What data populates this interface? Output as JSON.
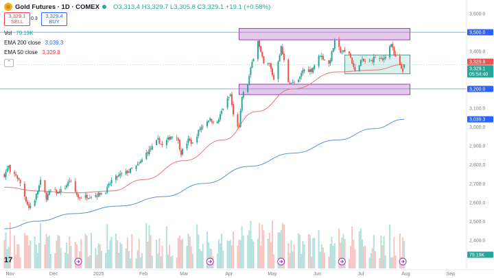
{
  "header": {
    "symbol": "Gold Futures · 1D · COMEX",
    "open": "O3,313.4",
    "high": "H3,329.7",
    "low": "L3,305.8",
    "close": "C3,329.1",
    "change": "+19.1 (+0.58%)"
  },
  "trade": {
    "sell_price": "3,329.1",
    "sell_label": "SELL",
    "spread": "0.3",
    "buy_price": "3,329.4",
    "buy_label": "BUY"
  },
  "indicators": {
    "vol_label": "Vol",
    "vol_value": "79.19K",
    "ema200_label": "EMA 200 close",
    "ema200_value": "3,039.3",
    "ema50_label": "EMA 50 close",
    "ema50_value": "3,329.8"
  },
  "colors": {
    "up": "#26a69a",
    "down": "#ef5350",
    "ema50": "#e57373",
    "ema200": "#5b8fd6",
    "zone_purple": "#e1bee7",
    "zone_purple_edge": "#7b1fa2",
    "zone_teal": "#cdeae5",
    "zone_teal_edge": "#2a7f74",
    "axis_text": "#787b86"
  },
  "badges": {
    "upper_level": "3,500.0",
    "lower_level": "3,200.0",
    "ema50_price": "3,329.8",
    "last_price": "3,329.1",
    "countdown": "05:54:40",
    "ema200_price": "3,039.3",
    "volume": "79.19K"
  },
  "chart_data": {
    "type": "candlestick",
    "title": "Gold Futures · 1D · COMEX",
    "y_ticks": [
      "3,600.0",
      "3,400.0",
      "3,300.0",
      "3,100.0",
      "3,000.0",
      "2,900.0",
      "2,800.0",
      "2,700.0",
      "2,600.0",
      "2,500.0",
      "2,400.0"
    ],
    "x_ticks": [
      "Nov",
      "Dec",
      "2025",
      "Feb",
      "Mar",
      "Apr",
      "May",
      "Jun",
      "Jul",
      "Aug",
      "Sep"
    ],
    "ylim": [
      2250,
      3620
    ],
    "ohlc_last": {
      "open": 3313.4,
      "high": 3329.7,
      "low": 3305.8,
      "close": 3329.1,
      "change": 19.1,
      "change_pct": 0.58
    },
    "close_path": [
      [
        "2024-10-28",
        2745
      ],
      [
        "2024-10-31",
        2790
      ],
      [
        "2024-11-01",
        2750
      ],
      [
        "2024-11-05",
        2745
      ],
      [
        "2024-11-08",
        2700
      ],
      [
        "2024-11-12",
        2610
      ],
      [
        "2024-11-14",
        2570
      ],
      [
        "2024-11-18",
        2615
      ],
      [
        "2024-11-22",
        2710
      ],
      [
        "2024-11-26",
        2625
      ],
      [
        "2024-11-29",
        2665
      ],
      [
        "2024-12-04",
        2650
      ],
      [
        "2024-12-09",
        2680
      ],
      [
        "2024-12-12",
        2715
      ],
      [
        "2024-12-18",
        2625
      ],
      [
        "2024-12-23",
        2630
      ],
      [
        "2024-12-31",
        2640
      ],
      [
        "2025-01-06",
        2660
      ],
      [
        "2025-01-10",
        2715
      ],
      [
        "2025-01-16",
        2745
      ],
      [
        "2025-01-22",
        2765
      ],
      [
        "2025-01-29",
        2800
      ],
      [
        "2025-02-03",
        2860
      ],
      [
        "2025-02-07",
        2890
      ],
      [
        "2025-02-11",
        2930
      ],
      [
        "2025-02-14",
        2900
      ],
      [
        "2025-02-20",
        2950
      ],
      [
        "2025-02-24",
        2950
      ],
      [
        "2025-02-27",
        2860
      ],
      [
        "2025-03-04",
        2930
      ],
      [
        "2025-03-07",
        2910
      ],
      [
        "2025-03-12",
        2990
      ],
      [
        "2025-03-18",
        3040
      ],
      [
        "2025-03-24",
        3020
      ],
      [
        "2025-03-28",
        3100
      ],
      [
        "2025-04-02",
        3170
      ],
      [
        "2025-04-04",
        3060
      ],
      [
        "2025-04-08",
        2990
      ],
      [
        "2025-04-10",
        3160
      ],
      [
        "2025-04-14",
        3230
      ],
      [
        "2025-04-17",
        3340
      ],
      [
        "2025-04-21",
        3460
      ],
      [
        "2025-04-22",
        3420
      ],
      [
        "2025-04-25",
        3330
      ],
      [
        "2025-04-29",
        3330
      ],
      [
        "2025-05-02",
        3250
      ],
      [
        "2025-05-07",
        3420
      ],
      [
        "2025-05-12",
        3240
      ],
      [
        "2025-05-15",
        3230
      ],
      [
        "2025-05-19",
        3240
      ],
      [
        "2025-05-22",
        3300
      ],
      [
        "2025-05-28",
        3300
      ],
      [
        "2025-06-03",
        3380
      ],
      [
        "2025-06-09",
        3330
      ],
      [
        "2025-06-13",
        3450
      ],
      [
        "2025-06-17",
        3400
      ],
      [
        "2025-06-23",
        3390
      ],
      [
        "2025-06-27",
        3290
      ],
      [
        "2025-07-01",
        3350
      ],
      [
        "2025-07-07",
        3340
      ],
      [
        "2025-07-11",
        3370
      ],
      [
        "2025-07-16",
        3350
      ],
      [
        "2025-07-22",
        3440
      ],
      [
        "2025-07-24",
        3380
      ],
      [
        "2025-07-28",
        3320
      ],
      [
        "2025-07-30",
        3300
      ],
      [
        "2025-07-31",
        3329
      ]
    ],
    "ema50_path": [
      [
        "2024-10-28",
        2680
      ],
      [
        "2024-11-20",
        2660
      ],
      [
        "2024-12-15",
        2650
      ],
      [
        "2025-01-10",
        2660
      ],
      [
        "2025-02-01",
        2720
      ],
      [
        "2025-03-01",
        2820
      ],
      [
        "2025-03-28",
        2930
      ],
      [
        "2025-04-20",
        3080
      ],
      [
        "2025-05-15",
        3200
      ],
      [
        "2025-06-15",
        3290
      ],
      [
        "2025-07-10",
        3300
      ],
      [
        "2025-07-31",
        3329.8
      ]
    ],
    "ema200_path": [
      [
        "2024-10-28",
        2460
      ],
      [
        "2024-11-20",
        2500
      ],
      [
        "2024-12-15",
        2540
      ],
      [
        "2025-01-15",
        2580
      ],
      [
        "2025-02-15",
        2630
      ],
      [
        "2025-03-15",
        2700
      ],
      [
        "2025-04-15",
        2790
      ],
      [
        "2025-05-15",
        2860
      ],
      [
        "2025-06-15",
        2930
      ],
      [
        "2025-07-10",
        2990
      ],
      [
        "2025-07-31",
        3039.3
      ]
    ],
    "zones": [
      {
        "name": "resistance-zone",
        "from": "2025-04-08",
        "to": "2025-08-04",
        "low": 3460,
        "high": 3520
      },
      {
        "name": "support-zone",
        "from": "2025-04-08",
        "to": "2025-08-04",
        "low": 3170,
        "high": 3225
      },
      {
        "name": "consolidation-box",
        "from": "2025-06-20",
        "to": "2025-08-04",
        "low": 3280,
        "high": 3380
      }
    ],
    "levels": [
      3500,
      3200
    ]
  }
}
